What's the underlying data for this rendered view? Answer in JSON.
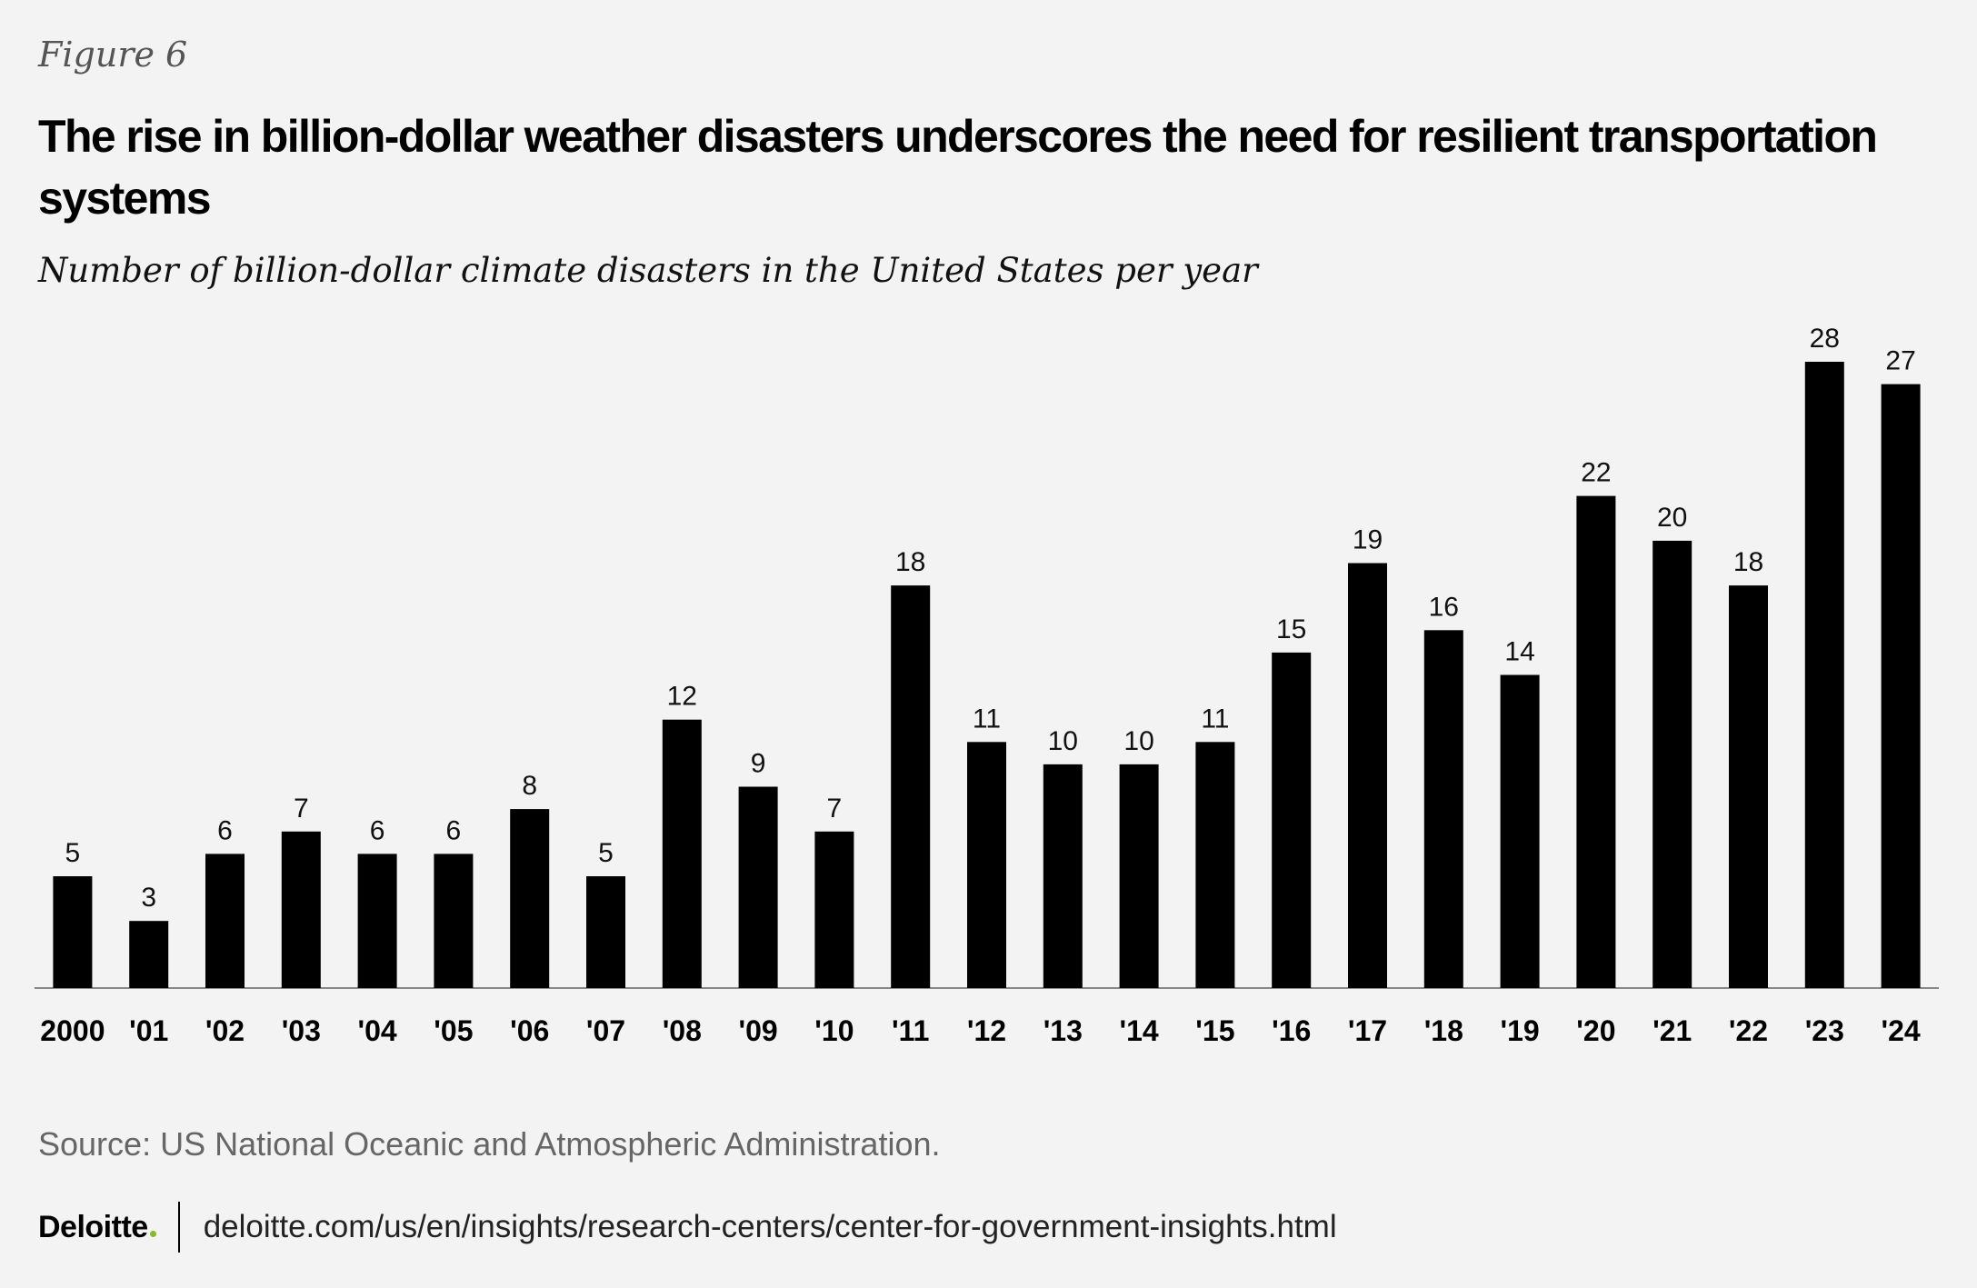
{
  "figure_label": "Figure 6",
  "title": "The rise in billion-dollar weather disasters underscores the need for resilient transportation systems",
  "subtitle": "Number of billion-dollar climate disasters in the United States per year",
  "source": "Source: US National Oceanic and Atmospheric Administration.",
  "footer": {
    "brand": "Deloitte",
    "brand_dot_color": "#86bc25",
    "url": "deloitte.com/us/en/insights/research-centers/center-for-government-insights.html"
  },
  "colors": {
    "background": "#f3f3f3",
    "bar": "#000000"
  },
  "chart_data": {
    "type": "bar",
    "title": "Number of billion-dollar climate disasters in the United States per year",
    "xlabel": "",
    "ylabel": "",
    "ylim": [
      0,
      28
    ],
    "grid": false,
    "categories": [
      "2000",
      "'01",
      "'02",
      "'03",
      "'04",
      "'05",
      "'06",
      "'07",
      "'08",
      "'09",
      "'10",
      "'11",
      "'12",
      "'13",
      "'14",
      "'15",
      "'16",
      "'17",
      "'18",
      "'19",
      "'20",
      "'21",
      "'22",
      "'23",
      "'24"
    ],
    "values": [
      5,
      3,
      6,
      7,
      6,
      6,
      8,
      5,
      12,
      9,
      7,
      18,
      11,
      10,
      10,
      11,
      15,
      19,
      16,
      14,
      22,
      20,
      18,
      28,
      27
    ]
  }
}
